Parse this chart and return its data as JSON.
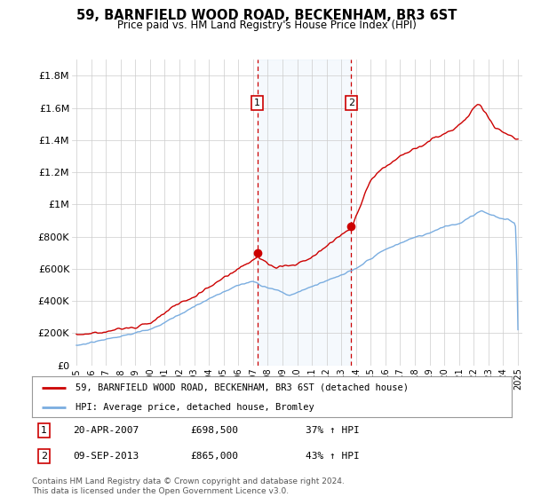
{
  "title": "59, BARNFIELD WOOD ROAD, BECKENHAM, BR3 6ST",
  "subtitle": "Price paid vs. HM Land Registry's House Price Index (HPI)",
  "ylim": [
    0,
    1900000
  ],
  "yticks": [
    0,
    200000,
    400000,
    600000,
    800000,
    1000000,
    1200000,
    1400000,
    1600000,
    1800000
  ],
  "ytick_labels": [
    "£0",
    "£200K",
    "£400K",
    "£600K",
    "£800K",
    "£1M",
    "£1.2M",
    "£1.4M",
    "£1.6M",
    "£1.8M"
  ],
  "x_start_year": 1995,
  "x_end_year": 2025,
  "sale1_date": 2007.3,
  "sale1_price": 698500,
  "sale1_text": "20-APR-2007",
  "sale1_pct": "37% ↑ HPI",
  "sale2_date": 2013.67,
  "sale2_price": 865000,
  "sale2_text": "09-SEP-2013",
  "sale2_pct": "43% ↑ HPI",
  "legend_line1": "59, BARNFIELD WOOD ROAD, BECKENHAM, BR3 6ST (detached house)",
  "legend_line2": "HPI: Average price, detached house, Bromley",
  "footer": "Contains HM Land Registry data © Crown copyright and database right 2024.\nThis data is licensed under the Open Government Licence v3.0.",
  "red_color": "#cc0000",
  "blue_color": "#7aade0",
  "shade_color": "#ddeeff",
  "grid_color": "#cccccc",
  "bg_color": "#ffffff"
}
